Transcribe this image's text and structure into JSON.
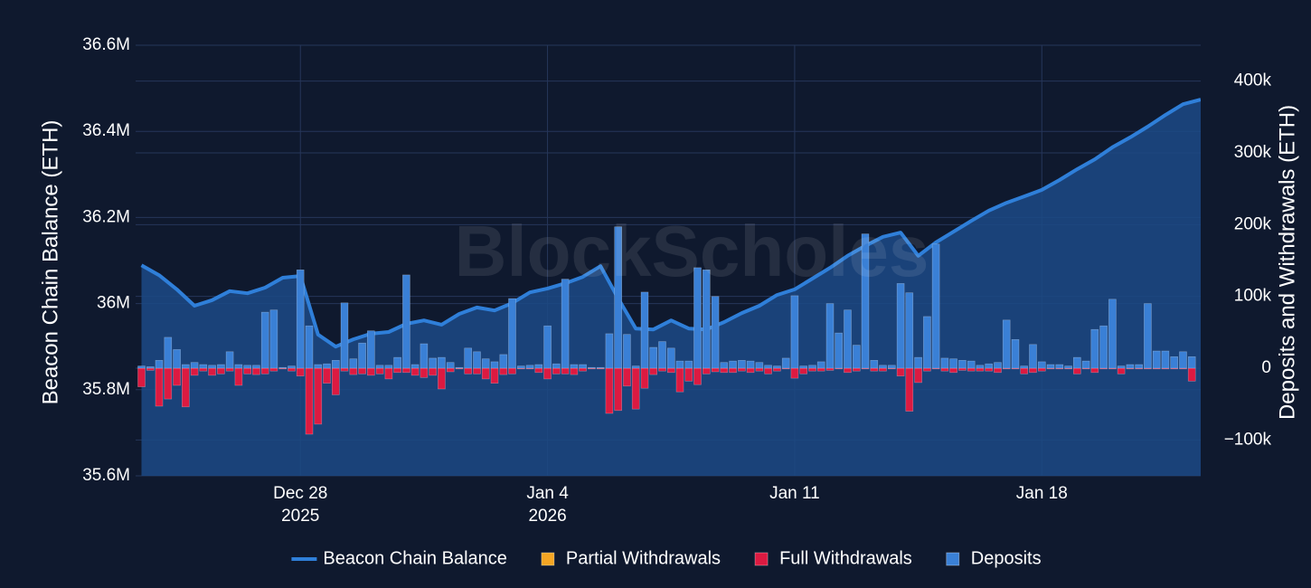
{
  "chart_data": {
    "type": "bar-line",
    "watermark": "BlockScholes",
    "ylabel": "Beacon Chain Balance (ETH)",
    "y2label": "Deposits and Withdrawals (ETH)",
    "barmode": "relative",
    "grid": true,
    "legend": "bottom",
    "xlim": [
      "2025-12-23T08:00",
      "2026-01-22T12:00"
    ],
    "xticks": [
      {
        "value": "2025-12-28T00:00",
        "label": "Dec 28",
        "year": "2025"
      },
      {
        "value": "2026-01-04T00:00",
        "label": "Jan 4",
        "year": "2026"
      },
      {
        "value": "2026-01-11T00:00",
        "label": "Jan 11"
      },
      {
        "value": "2026-01-18T00:00",
        "label": "Jan 18"
      }
    ],
    "ylim": [
      35600000,
      36600000
    ],
    "yticks": [
      {
        "value": 35600000,
        "label": "35.6M"
      },
      {
        "value": 35800000,
        "label": "35.8M"
      },
      {
        "value": 36000000,
        "label": "36M"
      },
      {
        "value": 36200000,
        "label": "36.2M"
      },
      {
        "value": 36400000,
        "label": "36.4M"
      },
      {
        "value": 36600000,
        "label": "36.6M"
      }
    ],
    "y2lim": [
      -150000,
      450000
    ],
    "y2ticks": [
      {
        "value": -100000,
        "label": "−100k"
      },
      0,
      {
        "value": 100000,
        "label": "100k"
      },
      {
        "value": 200000,
        "label": "200k"
      },
      {
        "value": 300000,
        "label": "300k"
      },
      {
        "value": 400000,
        "label": "400k"
      }
    ],
    "x": [
      "2025-12-23T12:00",
      "2025-12-23T18:00",
      "2025-12-24T00:00",
      "2025-12-24T06:00",
      "2025-12-24T12:00",
      "2025-12-24T18:00",
      "2025-12-25T00:00",
      "2025-12-25T06:00",
      "2025-12-25T12:00",
      "2025-12-25T18:00",
      "2025-12-26T00:00",
      "2025-12-26T06:00",
      "2025-12-26T12:00",
      "2025-12-26T18:00",
      "2025-12-27T00:00",
      "2025-12-27T06:00",
      "2025-12-27T12:00",
      "2025-12-27T18:00",
      "2025-12-28T00:00",
      "2025-12-28T06:00",
      "2025-12-28T12:00",
      "2025-12-28T18:00",
      "2025-12-29T00:00",
      "2025-12-29T06:00",
      "2025-12-29T12:00",
      "2025-12-29T18:00",
      "2025-12-30T00:00",
      "2025-12-30T06:00",
      "2025-12-30T12:00",
      "2025-12-30T18:00",
      "2025-12-31T00:00",
      "2025-12-31T06:00",
      "2025-12-31T12:00",
      "2025-12-31T18:00",
      "2026-01-01T00:00",
      "2026-01-01T06:00",
      "2026-01-01T12:00",
      "2026-01-01T18:00",
      "2026-01-02T00:00",
      "2026-01-02T06:00",
      "2026-01-02T12:00",
      "2026-01-02T18:00",
      "2026-01-03T00:00",
      "2026-01-03T06:00",
      "2026-01-03T12:00",
      "2026-01-03T18:00",
      "2026-01-04T00:00",
      "2026-01-04T06:00",
      "2026-01-04T12:00",
      "2026-01-04T18:00",
      "2026-01-05T00:00",
      "2026-01-05T06:00",
      "2026-01-05T12:00",
      "2026-01-05T18:00",
      "2026-01-06T00:00",
      "2026-01-06T06:00",
      "2026-01-06T12:00",
      "2026-01-06T18:00",
      "2026-01-07T00:00",
      "2026-01-07T06:00",
      "2026-01-07T12:00",
      "2026-01-07T18:00",
      "2026-01-08T00:00",
      "2026-01-08T06:00",
      "2026-01-08T12:00",
      "2026-01-08T18:00",
      "2026-01-09T00:00",
      "2026-01-09T06:00",
      "2026-01-09T12:00",
      "2026-01-09T18:00",
      "2026-01-10T00:00",
      "2026-01-10T06:00",
      "2026-01-10T12:00",
      "2026-01-10T18:00",
      "2026-01-11T00:00",
      "2026-01-11T06:00",
      "2026-01-11T12:00",
      "2026-01-11T18:00",
      "2026-01-12T00:00",
      "2026-01-12T06:00",
      "2026-01-12T12:00",
      "2026-01-12T18:00",
      "2026-01-13T00:00",
      "2026-01-13T06:00",
      "2026-01-13T12:00",
      "2026-01-13T18:00",
      "2026-01-14T00:00",
      "2026-01-14T06:00",
      "2026-01-14T12:00",
      "2026-01-14T18:00",
      "2026-01-15T00:00",
      "2026-01-15T06:00",
      "2026-01-15T12:00",
      "2026-01-15T18:00",
      "2026-01-16T00:00",
      "2026-01-16T06:00",
      "2026-01-16T12:00",
      "2026-01-16T18:00",
      "2026-01-17T00:00",
      "2026-01-17T06:00",
      "2026-01-17T12:00",
      "2026-01-17T18:00",
      "2026-01-18T00:00",
      "2026-01-18T06:00",
      "2026-01-18T12:00",
      "2026-01-18T18:00",
      "2026-01-19T00:00",
      "2026-01-19T06:00",
      "2026-01-19T12:00",
      "2026-01-19T18:00",
      "2026-01-20T00:00",
      "2026-01-20T06:00",
      "2026-01-20T12:00",
      "2026-01-20T18:00",
      "2026-01-21T00:00",
      "2026-01-21T06:00",
      "2026-01-21T12:00",
      "2026-01-21T18:00",
      "2026-01-22T00:00",
      "2026-01-22T06:00"
    ],
    "series": [
      {
        "name": "Beacon Chain Balance",
        "type": "line",
        "axis": "y",
        "color": "#2f7fd9",
        "fill": "#1c4a86",
        "x": [
          "2025-12-23T12:00",
          "2025-12-24T00:00",
          "2025-12-24T12:00",
          "2025-12-25T00:00",
          "2025-12-25T12:00",
          "2025-12-26T00:00",
          "2025-12-26T12:00",
          "2025-12-27T00:00",
          "2025-12-27T12:00",
          "2025-12-28T00:00",
          "2025-12-28T12:00",
          "2025-12-29T00:00",
          "2025-12-29T12:00",
          "2025-12-30T00:00",
          "2025-12-30T12:00",
          "2025-12-31T00:00",
          "2025-12-31T12:00",
          "2026-01-01T00:00",
          "2026-01-01T12:00",
          "2026-01-02T00:00",
          "2026-01-02T12:00",
          "2026-01-03T00:00",
          "2026-01-03T12:00",
          "2026-01-04T00:00",
          "2026-01-04T12:00",
          "2026-01-05T00:00",
          "2026-01-05T12:00",
          "2026-01-06T00:00",
          "2026-01-06T12:00",
          "2026-01-07T00:00",
          "2026-01-07T12:00",
          "2026-01-08T00:00",
          "2026-01-08T12:00",
          "2026-01-09T00:00",
          "2026-01-09T12:00",
          "2026-01-10T00:00",
          "2026-01-10T12:00",
          "2026-01-11T00:00",
          "2026-01-11T12:00",
          "2026-01-12T00:00",
          "2026-01-12T12:00",
          "2026-01-13T00:00",
          "2026-01-13T12:00",
          "2026-01-14T00:00",
          "2026-01-14T12:00",
          "2026-01-15T00:00",
          "2026-01-15T12:00",
          "2026-01-16T00:00",
          "2026-01-16T12:00",
          "2026-01-17T00:00",
          "2026-01-17T12:00",
          "2026-01-18T00:00",
          "2026-01-18T12:00",
          "2026-01-19T00:00",
          "2026-01-19T12:00",
          "2026-01-20T00:00",
          "2026-01-20T12:00",
          "2026-01-21T00:00",
          "2026-01-21T12:00",
          "2026-01-22T00:00",
          "2026-01-22T12:00"
        ],
        "values": [
          36089000,
          36066000,
          36033000,
          35995000,
          36008000,
          36029000,
          36024000,
          36037000,
          36060000,
          36064000,
          35928000,
          35900000,
          35917000,
          35930000,
          35934000,
          35953000,
          35961000,
          35951000,
          35976000,
          35991000,
          35984000,
          36001000,
          36026000,
          36035000,
          36047000,
          36062000,
          36087000,
          36012000,
          35942000,
          35940000,
          35961000,
          35942000,
          35940000,
          35957000,
          35978000,
          35995000,
          36020000,
          36033000,
          36058000,
          36083000,
          36111000,
          36134000,
          36155000,
          36165000,
          36111000,
          36142000,
          36167000,
          36192000,
          36216000,
          36234000,
          36249000,
          36264000,
          36287000,
          36312000,
          36335000,
          36363000,
          36386000,
          36411000,
          36438000,
          36463000,
          36474000
        ]
      },
      {
        "name": "Partial Withdrawals",
        "type": "bar",
        "axis": "y2",
        "color": "#f5a623",
        "values": [
          0,
          0,
          0,
          0,
          0,
          0,
          0,
          0,
          0,
          0,
          0,
          0,
          0,
          0,
          0,
          0,
          0,
          0,
          0,
          0,
          0,
          0,
          0,
          0,
          0,
          0,
          0,
          0,
          0,
          0,
          0,
          0,
          0,
          0,
          0,
          0,
          0,
          0,
          0,
          0,
          0,
          0,
          0,
          0,
          0,
          0,
          0,
          0,
          0,
          0,
          0,
          0,
          0,
          0,
          0,
          0,
          0,
          0,
          0,
          0,
          0,
          0,
          0,
          0,
          0,
          0,
          0,
          0,
          0,
          0,
          0,
          0,
          0,
          0,
          0,
          0,
          0,
          0,
          0,
          0,
          0,
          0,
          0,
          0,
          0,
          0,
          0,
          0,
          0,
          0,
          0,
          0,
          0,
          0,
          0,
          0,
          0,
          0,
          0,
          0,
          0,
          0,
          0,
          0,
          0,
          0,
          0,
          0,
          0,
          0,
          0,
          0,
          0,
          0,
          0,
          0,
          0,
          0,
          0,
          0
        ]
      },
      {
        "name": "Full Withdrawals",
        "type": "bar",
        "axis": "y2",
        "color": "#dc1a41",
        "values": [
          -26000,
          -3000,
          -53000,
          -43000,
          -24000,
          -54000,
          -10000,
          -4000,
          -10000,
          -8000,
          -4000,
          -24000,
          -8000,
          -9000,
          -8000,
          -4000,
          -1000,
          -4000,
          -11000,
          -92000,
          -78000,
          -21000,
          -37000,
          -4000,
          -9000,
          -8000,
          -10000,
          -8000,
          -15000,
          -6000,
          -6000,
          -10000,
          -13000,
          -10000,
          -29000,
          -5000,
          -1000,
          -8000,
          -8000,
          -15000,
          -21000,
          -9000,
          -8000,
          -1000,
          -1000,
          -6000,
          -15000,
          -8000,
          -8000,
          -9000,
          -4000,
          -1000,
          -1000,
          -63000,
          -59000,
          -25000,
          -57000,
          -28000,
          -9000,
          -4000,
          -6000,
          -33000,
          -18000,
          -23000,
          -8000,
          -5000,
          -6000,
          -6000,
          -4000,
          -6000,
          -4000,
          -8000,
          -4000,
          -1000,
          -14000,
          -8000,
          -4000,
          -4000,
          -3000,
          -1000,
          -6000,
          -4000,
          -1000,
          -4000,
          -4000,
          -1000,
          -11000,
          -60000,
          -20000,
          -4000,
          -1000,
          -4000,
          -6000,
          -3000,
          -4000,
          -4000,
          -4000,
          -6000,
          -1000,
          -1000,
          -8000,
          -6000,
          -4000,
          -1000,
          -1000,
          -1000,
          -8000,
          -1000,
          -6000,
          -1000,
          -1000,
          -8000,
          -1000,
          -1000,
          -1000,
          -1000,
          -1000,
          -1000,
          -1000,
          -18000
        ]
      },
      {
        "name": "Deposits",
        "type": "bar",
        "axis": "y2",
        "color": "#3a80d6",
        "values": [
          3000,
          2000,
          11000,
          43000,
          26000,
          5000,
          8000,
          5000,
          4000,
          5000,
          23000,
          5000,
          4000,
          4000,
          78000,
          81000,
          1000,
          3000,
          137000,
          59000,
          5000,
          6000,
          11000,
          91000,
          13000,
          35000,
          52000,
          4000,
          4000,
          15000,
          130000,
          5000,
          34000,
          14000,
          15000,
          8000,
          1000,
          28000,
          23000,
          13000,
          9000,
          19000,
          97000,
          3000,
          4000,
          5000,
          59000,
          6000,
          124000,
          5000,
          5000,
          1000,
          1000,
          48000,
          197000,
          47000,
          3000,
          106000,
          29000,
          37000,
          28000,
          10000,
          10000,
          140000,
          137000,
          100000,
          8000,
          10000,
          11000,
          10000,
          8000,
          4000,
          3000,
          14000,
          101000,
          3000,
          4000,
          9000,
          90000,
          49000,
          81000,
          32000,
          187000,
          11000,
          4000,
          4000,
          118000,
          105000,
          15000,
          72000,
          173000,
          14000,
          13000,
          11000,
          10000,
          4000,
          6000,
          8000,
          67000,
          40000,
          3000,
          33000,
          9000,
          5000,
          5000,
          3000,
          15000,
          10000,
          54000,
          59000,
          96000,
          3000,
          5000,
          5000,
          90000,
          24000,
          24000,
          16000,
          23000,
          16000
        ]
      }
    ]
  }
}
